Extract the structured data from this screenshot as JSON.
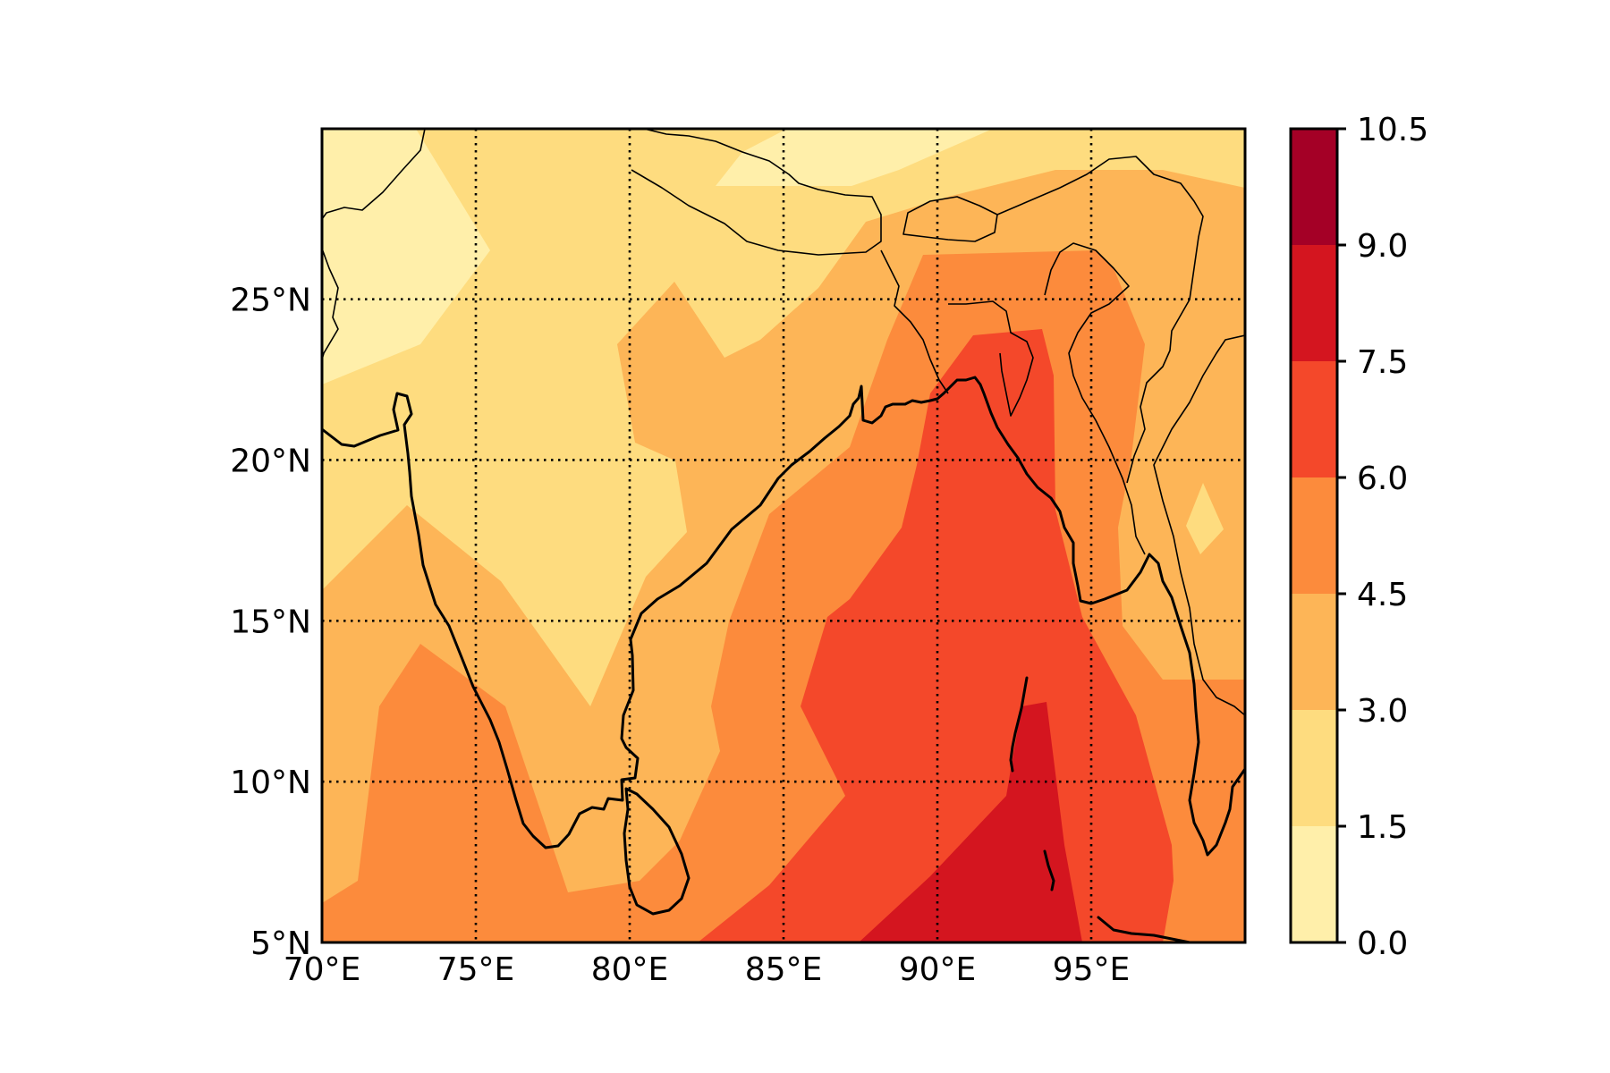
{
  "chart_data": {
    "type": "heatmap",
    "title": "",
    "map": {
      "region": "South Asia / Bay of Bengal",
      "lon_range": [
        70,
        100
      ],
      "lat_range": [
        5,
        30.3
      ],
      "gridlines": "dotted",
      "x_ticks": [
        {
          "lon": 70,
          "label": "70°E"
        },
        {
          "lon": 75,
          "label": "75°E"
        },
        {
          "lon": 80,
          "label": "80°E"
        },
        {
          "lon": 85,
          "label": "85°E"
        },
        {
          "lon": 90,
          "label": "90°E"
        },
        {
          "lon": 95,
          "label": "95°E"
        }
      ],
      "y_ticks": [
        {
          "lat": 5,
          "label": "5°N"
        },
        {
          "lat": 10,
          "label": "10°N"
        },
        {
          "lat": 15,
          "label": "15°N"
        },
        {
          "lat": 20,
          "label": "20°N"
        },
        {
          "lat": 25,
          "label": "25°N"
        }
      ]
    },
    "colorbar": {
      "placement": "right",
      "levels": [
        {
          "low": 0.0,
          "high": 1.5,
          "color": "#ffefaa"
        },
        {
          "low": 1.5,
          "high": 3.0,
          "color": "#fedc7f"
        },
        {
          "low": 3.0,
          "high": 4.5,
          "color": "#fdb557"
        },
        {
          "low": 4.5,
          "high": 6.0,
          "color": "#fc8b3c"
        },
        {
          "low": 6.0,
          "high": 7.5,
          "color": "#f4482a"
        },
        {
          "low": 7.5,
          "high": 9.0,
          "color": "#d4151f"
        },
        {
          "low": 9.0,
          "high": 10.5,
          "color": "#a40026"
        }
      ],
      "tick_labels": [
        "0.0",
        "1.5",
        "3.0",
        "4.5",
        "6.0",
        "7.5",
        "9.0",
        "10.5"
      ]
    }
  }
}
